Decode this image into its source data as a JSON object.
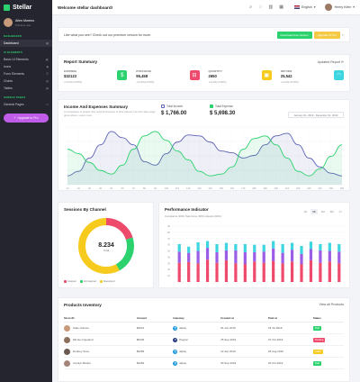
{
  "colors": {
    "accent": "#2bd26e",
    "purple": "#c05de8",
    "blue": "#5d62b5",
    "green": "#2bd26e",
    "red": "#ee4a6c",
    "yellow": "#f7cb1d"
  },
  "sidebar": {
    "brand": "Stellar",
    "profile": {
      "name": "Allen Moreno",
      "role": "Premium user"
    },
    "sections": [
      {
        "label": "DASHBOARD",
        "items": [
          {
            "label": "Dashboard",
            "icon": "dashboard-icon",
            "active": true
          }
        ]
      },
      {
        "label": "UI ELEMENTS",
        "items": [
          {
            "label": "Basic UI Elements",
            "icon": "layers-icon"
          },
          {
            "label": "Icons",
            "icon": "icons-icon"
          },
          {
            "label": "Form Elements",
            "icon": "form-icon"
          },
          {
            "label": "Charts",
            "icon": "chart-icon"
          },
          {
            "label": "Tables",
            "icon": "table-icon"
          }
        ]
      },
      {
        "label": "SAMPLE PAGES",
        "items": [
          {
            "label": "General Pages",
            "icon": "pages-icon"
          }
        ]
      }
    ],
    "upgrade": "Upgrade to Pro"
  },
  "header": {
    "title": "Welcome stellar dashboard!",
    "language": "English",
    "user": "Henry Klein"
  },
  "promo": {
    "text": "Like what you see? Check out our premium version for more.",
    "download": "Download Free Version",
    "upgrade": "Upgrade To Pro",
    "close": "×"
  },
  "report": {
    "title": "Report Summary",
    "updated": "Updated Report",
    "stats": [
      {
        "label": "EXPENSE",
        "value": "$32123",
        "sub": "+14.00(+0.50%)",
        "color": "#2bd26e",
        "icon": "dollar-icon"
      },
      {
        "label": "PURCHASE",
        "value": "95,458",
        "sub": "+14.00(+0.50%)",
        "color": "#ee4a6c",
        "icon": "cart-icon"
      },
      {
        "label": "QUANTITY",
        "value": "2650",
        "sub": "+14.00(+0.50%)",
        "color": "#f7cb1d",
        "icon": "box-icon"
      },
      {
        "label": "RETURN",
        "value": "25,542",
        "sub": "+14.00(+0.50%)",
        "color": "#3dd5e0",
        "icon": "wifi-icon"
      }
    ]
  },
  "income": {
    "title": "Income And Expenses Summary",
    "description": "A comparison of people who mark themselves of their interest from the date range given above. Learn more.",
    "total_income_label": "Total Income",
    "total_income": "$ 1,766.00",
    "total_expense_label": "Total Expense",
    "total_expense": "$ 5,698.30",
    "date_range": "January 01, 2019 - December 31, 2019"
  },
  "chart_data": [
    {
      "type": "area",
      "x": [
        "10",
        "20",
        "30",
        "40",
        "50",
        "60",
        "70",
        "80",
        "90",
        "100",
        "110",
        "120",
        "130",
        "140",
        "150",
        "160",
        "170",
        "180",
        "190",
        "200",
        "210",
        "220",
        "230",
        "240",
        "250",
        "260"
      ],
      "series": [
        {
          "values": [
            10,
            15,
            30,
            45,
            60,
            53,
            45,
            26,
            22,
            35,
            48,
            56,
            55,
            48,
            38,
            36,
            30,
            33,
            45,
            55,
            58,
            45,
            30,
            20,
            13,
            10
          ]
        },
        {
          "values": [
            40,
            35,
            25,
            16,
            12,
            22,
            40,
            55,
            60,
            50,
            38,
            28,
            15,
            10,
            12,
            20,
            40,
            52,
            55,
            45,
            30,
            15,
            10,
            18,
            32,
            45
          ]
        }
      ],
      "colors": [
        "#5d62b5",
        "#2bd26e"
      ],
      "ylim": [
        0,
        65
      ]
    },
    {
      "type": "pie",
      "categories": [
        "Assigned",
        "Not Assigned",
        "Reassigned"
      ],
      "values": [
        20,
        22,
        58
      ],
      "colors": [
        "#ee4a6c",
        "#2bd26e",
        "#f7cb1d"
      ],
      "center_value": "8.234",
      "center_label": "Total"
    },
    {
      "type": "bar",
      "title": "Performance Indicator",
      "categories": [
        "1",
        "2",
        "3",
        "4",
        "5",
        "6",
        "7",
        "8",
        "9",
        "10",
        "11",
        "12",
        "13",
        "14",
        "15",
        "16",
        "17",
        "18"
      ],
      "series": [
        {
          "name": "Complaints",
          "values": [
            31,
            32,
            30,
            36,
            31,
            35,
            30,
            29,
            33,
            31,
            34,
            30,
            33,
            29,
            35,
            31,
            33,
            30
          ]
        },
        {
          "name": "Task Done",
          "values": [
            18,
            15,
            20,
            19,
            17,
            16,
            21,
            19,
            15,
            18,
            20,
            17,
            19,
            16,
            18,
            20,
            17,
            19
          ]
        },
        {
          "name": "Attends",
          "values": [
            12,
            10,
            14,
            11,
            13,
            12,
            10,
            13,
            12,
            11,
            12,
            14,
            11,
            13,
            12,
            10,
            13,
            12
          ]
        }
      ],
      "colors": [
        "#ee4a6c",
        "#9b5de5",
        "#3dd5e0"
      ],
      "ylim": [
        0,
        90
      ],
      "yticks": [
        "10",
        "20",
        "30",
        "40",
        "50",
        "60",
        "70",
        "80",
        "90"
      ]
    }
  ],
  "sessions": {
    "title": "Sessions By Channel",
    "legend": [
      "Assigned",
      "Not Assigned",
      "Reassigned"
    ]
  },
  "perf": {
    "title": "Performance Indicator",
    "sub": "Complaints (20%)   Task Done (30%)   Attends (60%)",
    "tabs": [
      "1D",
      "5D",
      "1M",
      "6M",
      "1Y"
    ]
  },
  "inventory": {
    "title": "Products Inventory",
    "view_all": "View all Products",
    "columns": [
      "Store ID",
      "Amount",
      "Gateway",
      "Created at",
      "Paid at",
      "Status"
    ],
    "rows": [
      {
        "store": "Katie Holmes",
        "amount": "$3621",
        "gateway": "alipay",
        "created": "04 Jun 2019",
        "paid": "18 Jul 2019",
        "status": "Paid",
        "status_color": "#2bd26e",
        "avatar": "#c79a7a",
        "gw_color": "#1296db"
      },
      {
        "store": "Minnie Copeland",
        "amount": "$6245",
        "gateway": "Paypal",
        "created": "25 Sep 2019",
        "paid": "07 Oct 2019",
        "status": "Pending",
        "status_color": "#ee4a6c",
        "avatar": "#8c6f5c",
        "gw_color": "#253b80"
      },
      {
        "store": "Rodney Sims",
        "amount": "$9265",
        "gateway": "alipay",
        "created": "12 dec 2019",
        "paid": "26 Aug 2019",
        "status": "Failed",
        "status_color": "#f7cb1d",
        "avatar": "#6b5a52",
        "gw_color": "#1296db"
      },
      {
        "store": "Carolyn Barker",
        "amount": "$2263",
        "gateway": "alipay",
        "created": "30 Sep 2019",
        "paid": "20 Oct 2019",
        "status": "Paid",
        "status_color": "#2bd26e",
        "avatar": "#a5847a",
        "gw_color": "#1296db"
      }
    ]
  }
}
